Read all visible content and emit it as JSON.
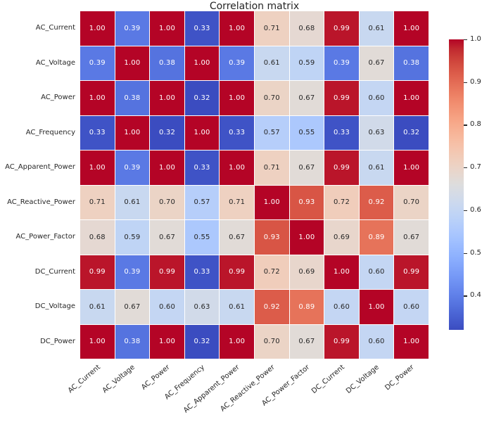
{
  "chart_data": {
    "type": "heatmap",
    "title": "Correlation matrix",
    "labels": [
      "AC_Current",
      "AC_Voltage",
      "AC_Power",
      "AC_Frequency",
      "AC_Apparent_Power",
      "AC_Reactive_Power",
      "AC_Power_Factor",
      "DC_Current",
      "DC_Voltage",
      "DC_Power"
    ],
    "matrix": [
      [
        1.0,
        0.39,
        1.0,
        0.33,
        1.0,
        0.71,
        0.68,
        0.99,
        0.61,
        1.0
      ],
      [
        0.39,
        1.0,
        0.38,
        1.0,
        0.39,
        0.61,
        0.59,
        0.39,
        0.67,
        0.38
      ],
      [
        1.0,
        0.38,
        1.0,
        0.32,
        1.0,
        0.7,
        0.67,
        0.99,
        0.6,
        1.0
      ],
      [
        0.33,
        1.0,
        0.32,
        1.0,
        0.33,
        0.57,
        0.55,
        0.33,
        0.63,
        0.32
      ],
      [
        1.0,
        0.39,
        1.0,
        0.33,
        1.0,
        0.71,
        0.67,
        0.99,
        0.61,
        1.0
      ],
      [
        0.71,
        0.61,
        0.7,
        0.57,
        0.71,
        1.0,
        0.93,
        0.72,
        0.92,
        0.7
      ],
      [
        0.68,
        0.59,
        0.67,
        0.55,
        0.67,
        0.93,
        1.0,
        0.69,
        0.89,
        0.67
      ],
      [
        0.99,
        0.39,
        0.99,
        0.33,
        0.99,
        0.72,
        0.69,
        1.0,
        0.6,
        0.99
      ],
      [
        0.61,
        0.67,
        0.6,
        0.63,
        0.61,
        0.92,
        0.89,
        0.6,
        1.0,
        0.6
      ],
      [
        1.0,
        0.38,
        1.0,
        0.32,
        1.0,
        0.7,
        0.67,
        0.99,
        0.6,
        1.0
      ]
    ],
    "value_decimals": 2,
    "colormap": "coolwarm",
    "vmin": 0.32,
    "vmax": 1.0,
    "colorbar": {
      "tick_labels": [
        "1.0",
        "0.9",
        "0.8",
        "0.7",
        "0.6",
        "0.5",
        "0.4"
      ],
      "tick_values": [
        1.0,
        0.9,
        0.8,
        0.7,
        0.6,
        0.5,
        0.4
      ]
    },
    "colors": {
      "min_color": "#3b4cc0",
      "mid_color": "#dddddd",
      "max_color": "#b40426",
      "text_dark": "#262626",
      "text_light": "#ffffff",
      "background": "#ffffff",
      "cell_gap": "#ffffff"
    },
    "legend_position": "right",
    "grid": false
  }
}
